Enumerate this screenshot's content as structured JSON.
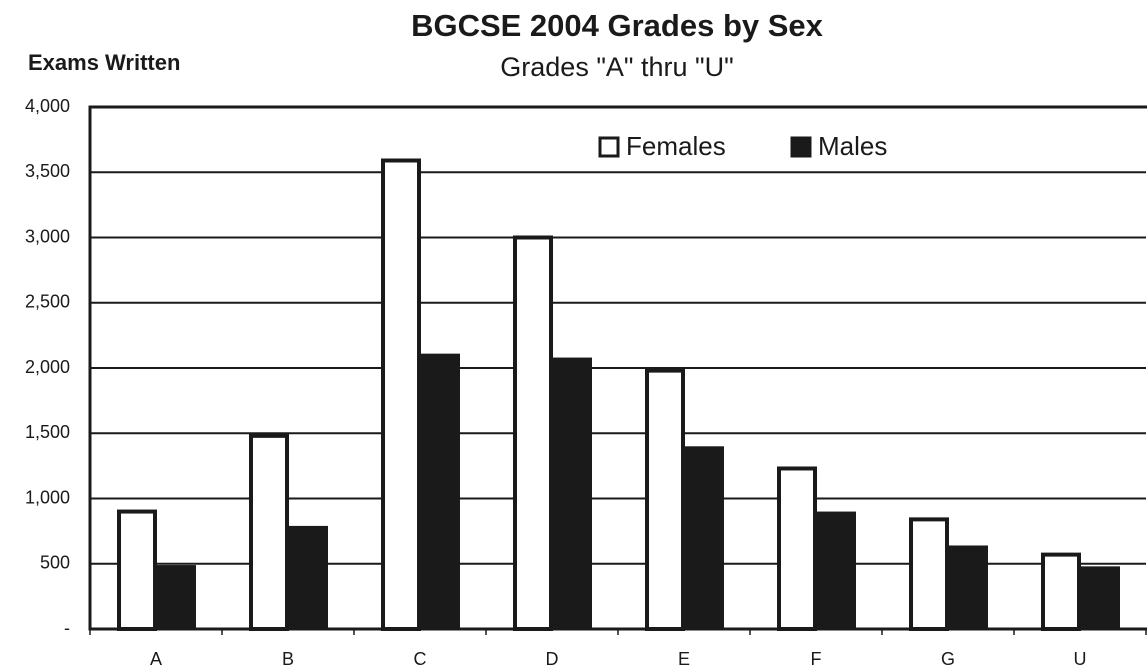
{
  "chart_data": {
    "type": "bar",
    "title": "BGCSE 2004 Grades by Sex",
    "subtitle": "Grades \"A\" thru \"U\"",
    "y_label": "Exams Written",
    "categories": [
      "A",
      "B",
      "C",
      "D",
      "E",
      "F",
      "G",
      "U"
    ],
    "series": [
      {
        "name": "Females",
        "color": "#ffffff",
        "values": [
          900,
          1480,
          3590,
          3000,
          1980,
          1230,
          840,
          570
        ]
      },
      {
        "name": "Males",
        "color": "#1a1a1a",
        "values": [
          490,
          790,
          2110,
          2080,
          1400,
          900,
          640,
          480
        ]
      }
    ],
    "ylim": [
      0,
      4000
    ],
    "yticks": [
      {
        "value": 0,
        "label": "-"
      },
      500,
      {
        "value": 1000,
        "label": "1,000"
      },
      {
        "value": 1500,
        "label": "1,500"
      },
      {
        "value": 2000,
        "label": "2,000"
      },
      {
        "value": 2500,
        "label": "2,500"
      },
      {
        "value": 3000,
        "label": "3,000"
      },
      {
        "value": 3500,
        "label": "3,500"
      },
      {
        "value": 4000,
        "label": "4,000"
      }
    ],
    "grid": true
  }
}
